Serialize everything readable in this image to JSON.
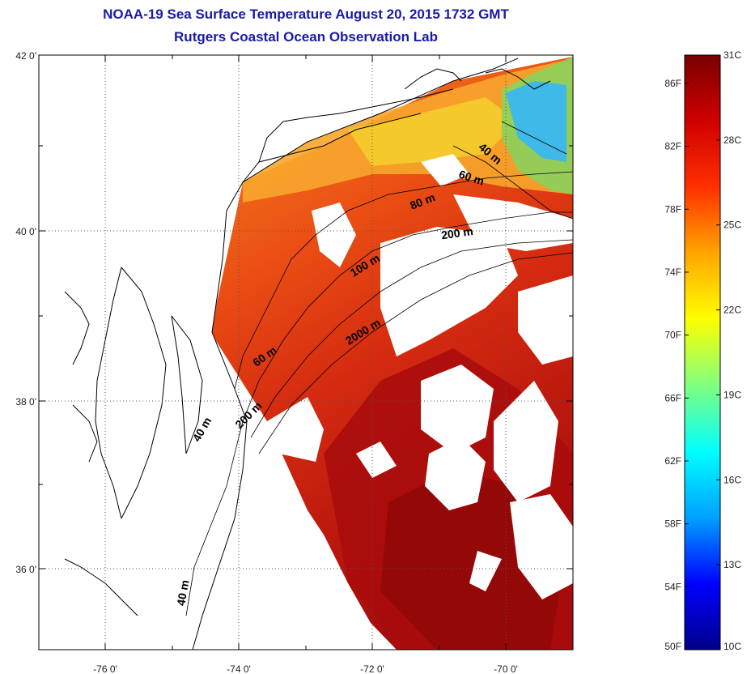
{
  "title_line1": "NOAA-19 Sea Surface Temperature August 20, 2015 1732 GMT",
  "title_line2": "Rutgers Coastal Ocean Observation Lab",
  "map": {
    "lon_range": [
      -77,
      -69
    ],
    "lat_range": [
      35,
      42
    ],
    "x_tick_labels": [
      "-76 0'",
      "-74 0'",
      "-72 0'",
      "-70 0'"
    ],
    "y_tick_labels": [
      "42 0'",
      "40 0'",
      "38 0'",
      "36 0'"
    ],
    "colors": {
      "water_very_warm": "#a40b0b",
      "water_warm": "#e02a10",
      "water_shelf": "#f06a18",
      "water_coastal": "#f9a12a",
      "water_near_shore": "#f7d22e",
      "water_cool": "#3fb9e8",
      "water_green": "#8fd45a",
      "clouds_land": "#ffffff",
      "coastline": "#000000"
    },
    "isobath_labels": [
      {
        "id": "40m-northeast",
        "text": "40 m"
      },
      {
        "id": "60m-northeast",
        "text": "60 m"
      },
      {
        "id": "80m",
        "text": "80 m"
      },
      {
        "id": "200m-north",
        "text": "200 m"
      },
      {
        "id": "100m",
        "text": "100 m"
      },
      {
        "id": "2000m",
        "text": "2000 m"
      },
      {
        "id": "60m-south",
        "text": "60 m"
      },
      {
        "id": "200m-south",
        "text": "200 m"
      },
      {
        "id": "40m-mid",
        "text": "40 m"
      },
      {
        "id": "40m-southwest",
        "text": "40 m"
      }
    ]
  },
  "colorbar": {
    "celsius_labels": [
      "31C",
      "28C",
      "25C",
      "22C",
      "19C",
      "16C",
      "13C",
      "10C"
    ],
    "fahrenheit_labels": [
      "86F",
      "82F",
      "78F",
      "74F",
      "70F",
      "66F",
      "62F",
      "58F",
      "54F",
      "50F"
    ],
    "range_c": [
      10,
      31
    ],
    "colormap": [
      "#00008b",
      "#0000ff",
      "#00a0ff",
      "#00ffff",
      "#80ff80",
      "#ffff00",
      "#ffa500",
      "#ff3000",
      "#d00000",
      "#7a0000"
    ]
  }
}
